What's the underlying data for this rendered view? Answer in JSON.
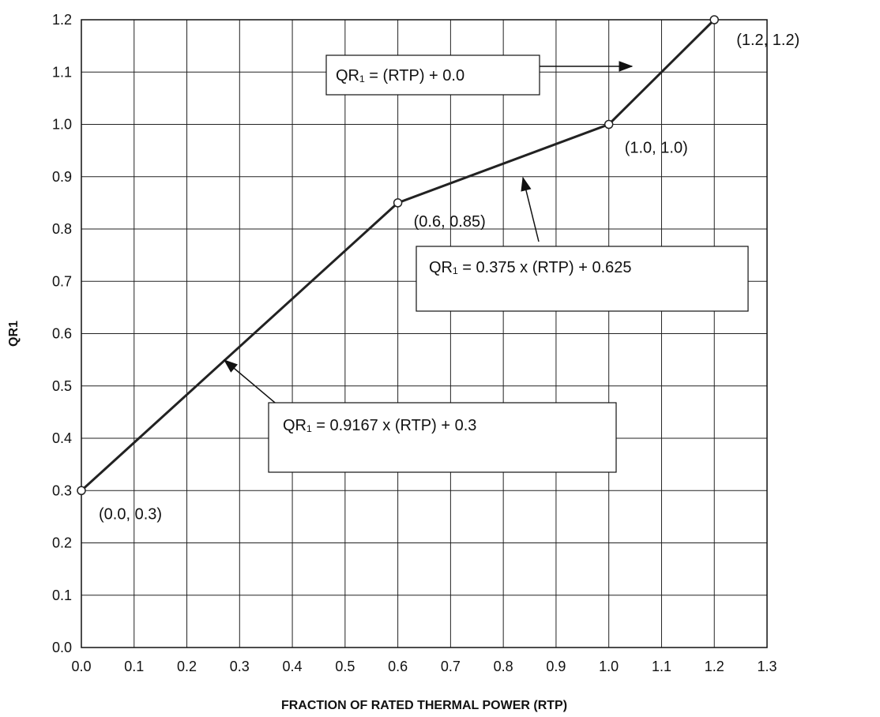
{
  "chart_data": {
    "type": "line",
    "title": "",
    "xlabel": "FRACTION OF RATED THERMAL POWER (RTP)",
    "ylabel": "QR1",
    "xlim": [
      0.0,
      1.3
    ],
    "ylim": [
      0.0,
      1.2
    ],
    "x_ticks": [
      "0.0",
      "0.1",
      "0.2",
      "0.3",
      "0.4",
      "0.5",
      "0.6",
      "0.7",
      "0.8",
      "0.9",
      "1.0",
      "1.1",
      "1.2",
      "1.3"
    ],
    "y_ticks": [
      "0.0",
      "0.1",
      "0.2",
      "0.3",
      "0.4",
      "0.5",
      "0.6",
      "0.7",
      "0.8",
      "0.9",
      "1.0",
      "1.1",
      "1.2"
    ],
    "grid": true,
    "series": [
      {
        "x": [
          0.0,
          0.6,
          1.0,
          1.2
        ],
        "y": [
          0.3,
          0.85,
          1.0,
          1.2
        ]
      }
    ],
    "point_labels": [
      {
        "x": 0.0,
        "y": 0.3,
        "text": "(0.0, 0.3)"
      },
      {
        "x": 0.6,
        "y": 0.85,
        "text": "(0.6, 0.85)"
      },
      {
        "x": 1.0,
        "y": 1.0,
        "text": "(1.0, 1.0)"
      },
      {
        "x": 1.2,
        "y": 1.2,
        "text": "(1.2, 1.2)"
      }
    ],
    "annotations": [
      {
        "text": "QR₁ = (RTP) + 0.0",
        "points_to": {
          "x": 1.07,
          "y": 1.108
        }
      },
      {
        "text": "QR₁ = 0.375 x (RTP) + 0.625",
        "points_to": {
          "x": 0.84,
          "y": 0.905
        }
      },
      {
        "text": "QR₁ = 0.9167 x (RTP) + 0.3",
        "points_to": {
          "x": 0.27,
          "y": 0.547
        }
      }
    ]
  }
}
